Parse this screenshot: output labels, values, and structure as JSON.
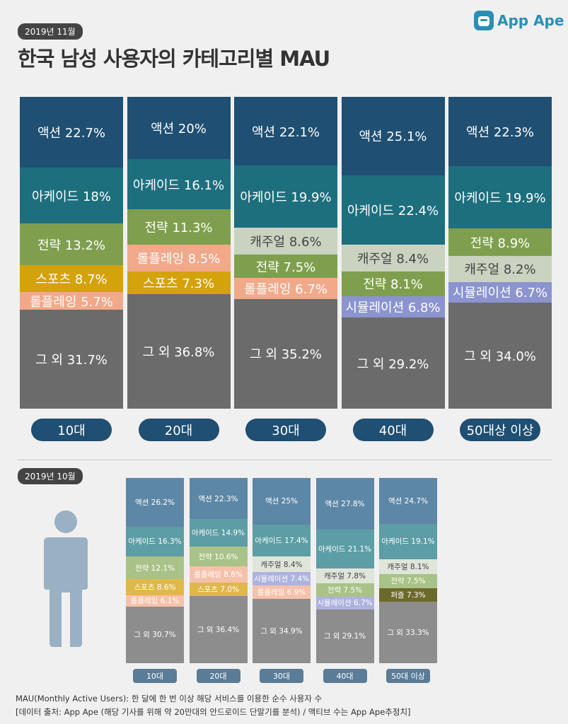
{
  "header": {
    "date_badge": "2019년 11월",
    "title": "한국 남성 사용자의 카테고리별 MAU",
    "logo_text": "App Ape"
  },
  "colors": {
    "액션": "#1f4f72",
    "아케이드": "#1d6f7e",
    "전략": "#7f9f4e",
    "캐주얼": "#c9d3c0",
    "스포츠": "#d4a20b",
    "롤플레잉": "#f2a98a",
    "시뮬레이션": "#8b94cf",
    "퍼즐": "#6b6a2a",
    "그 외": "#6b6b6b",
    "pill": "#1f4f72"
  },
  "colors_small": {
    "액션": "#5d87a6",
    "아케이드": "#5d9da5",
    "전략": "#a9c287",
    "캐주얼": "#dfe5d9",
    "스포츠": "#e0b84a",
    "롤플레잉": "#f6c1ab",
    "시뮬레이션": "#aeb3dd",
    "퍼즐": "#6b6a2a",
    "그 외": "#8d8d8d"
  },
  "chart_data": [
    {
      "type": "bar",
      "stacked": true,
      "title": "한국 남성 사용자의 카테고리별 MAU",
      "period": "2019년 11월",
      "unit": "%",
      "categories": [
        "10대",
        "20대",
        "30대",
        "40대",
        "50대상 이상"
      ],
      "columns": [
        {
          "group": "10대",
          "segments": [
            {
              "name": "액션",
              "value": 22.7,
              "label": "액션 22.7%"
            },
            {
              "name": "아케이드",
              "value": 18,
              "label": "아케이드 18%"
            },
            {
              "name": "전략",
              "value": 13.2,
              "label": "전략 13.2%"
            },
            {
              "name": "스포츠",
              "value": 8.7,
              "label": "스포츠 8.7%"
            },
            {
              "name": "롤플레잉",
              "value": 5.7,
              "label": "롤플레잉 5.7%"
            },
            {
              "name": "그 외",
              "value": 31.7,
              "label": "그 외 31.7%"
            }
          ]
        },
        {
          "group": "20대",
          "segments": [
            {
              "name": "액션",
              "value": 20,
              "label": "액션 20%"
            },
            {
              "name": "아케이드",
              "value": 16.1,
              "label": "아케이드 16.1%"
            },
            {
              "name": "전략",
              "value": 11.3,
              "label": "전략 11.3%"
            },
            {
              "name": "롤플레잉",
              "value": 8.5,
              "label": "롤플레잉 8.5%"
            },
            {
              "name": "스포츠",
              "value": 7.3,
              "label": "스포츠 7.3%"
            },
            {
              "name": "그 외",
              "value": 36.8,
              "label": "그 외 36.8%"
            }
          ]
        },
        {
          "group": "30대",
          "segments": [
            {
              "name": "액션",
              "value": 22.1,
              "label": "액션 22.1%"
            },
            {
              "name": "아케이드",
              "value": 19.9,
              "label": "아케이드 19.9%"
            },
            {
              "name": "캐주얼",
              "value": 8.6,
              "label": "캐주얼 8.6%"
            },
            {
              "name": "전략",
              "value": 7.5,
              "label": "전략 7.5%"
            },
            {
              "name": "롤플레잉",
              "value": 6.7,
              "label": "롤플레잉 6.7%"
            },
            {
              "name": "그 외",
              "value": 35.2,
              "label": "그 외 35.2%"
            }
          ]
        },
        {
          "group": "40대",
          "segments": [
            {
              "name": "액션",
              "value": 25.1,
              "label": "액션 25.1%"
            },
            {
              "name": "아케이드",
              "value": 22.4,
              "label": "아케이드 22.4%"
            },
            {
              "name": "캐주얼",
              "value": 8.4,
              "label": "캐주얼 8.4%"
            },
            {
              "name": "전략",
              "value": 8.1,
              "label": "전략 8.1%"
            },
            {
              "name": "시뮬레이션",
              "value": 6.8,
              "label": "시뮬레이션 6.8%"
            },
            {
              "name": "그 외",
              "value": 29.2,
              "label": "그 외 29.2%"
            }
          ]
        },
        {
          "group": "50대상 이상",
          "segments": [
            {
              "name": "액션",
              "value": 22.3,
              "label": "액션 22.3%"
            },
            {
              "name": "아케이드",
              "value": 19.9,
              "label": "아케이드 19.9%"
            },
            {
              "name": "전략",
              "value": 8.9,
              "label": "전략 8.9%"
            },
            {
              "name": "캐주얼",
              "value": 8.2,
              "label": "캐주얼 8.2%"
            },
            {
              "name": "시뮬레이션",
              "value": 6.7,
              "label": "시뮬레이션 6.7%"
            },
            {
              "name": "그 외",
              "value": 34.0,
              "label": "그 외 34.0%"
            }
          ]
        }
      ]
    },
    {
      "type": "bar",
      "stacked": true,
      "period": "2019년 10월",
      "unit": "%",
      "categories": [
        "10대",
        "20대",
        "30대",
        "40대",
        "50대 이상"
      ],
      "columns": [
        {
          "group": "10대",
          "segments": [
            {
              "name": "액션",
              "value": 26.2,
              "label": "액션 26.2%"
            },
            {
              "name": "아케이드",
              "value": 16.3,
              "label": "아케이드 16.3%"
            },
            {
              "name": "전략",
              "value": 12.1,
              "label": "전략 12.1%"
            },
            {
              "name": "스포츠",
              "value": 8.6,
              "label": "스포츠 8.6%"
            },
            {
              "name": "롤플레잉",
              "value": 6.1,
              "label": "롤플레잉 6.1%"
            },
            {
              "name": "그 외",
              "value": 30.7,
              "label": "그 외 30.7%"
            }
          ]
        },
        {
          "group": "20대",
          "segments": [
            {
              "name": "액션",
              "value": 22.3,
              "label": "액션 22.3%"
            },
            {
              "name": "아케이드",
              "value": 14.9,
              "label": "아케이드 14.9%"
            },
            {
              "name": "전략",
              "value": 10.6,
              "label": "전략 10.6%"
            },
            {
              "name": "롤플레잉",
              "value": 8.8,
              "label": "롤플레잉 8.8%"
            },
            {
              "name": "스포츠",
              "value": 7.0,
              "label": "스포츠 7.0%"
            },
            {
              "name": "그 외",
              "value": 36.4,
              "label": "그 외 36.4%"
            }
          ]
        },
        {
          "group": "30대",
          "segments": [
            {
              "name": "액션",
              "value": 25,
              "label": "액션 25%"
            },
            {
              "name": "아케이드",
              "value": 17.4,
              "label": "아케이드 17.4%"
            },
            {
              "name": "캐주얼",
              "value": 8.4,
              "label": "캐주얼 8.4%"
            },
            {
              "name": "시뮬레이션",
              "value": 7.4,
              "label": "시뮬레이션 7.4%"
            },
            {
              "name": "롤플레잉",
              "value": 6.9,
              "label": "롤플레잉 6.9%"
            },
            {
              "name": "그 외",
              "value": 34.9,
              "label": "그 외 34.9%"
            }
          ]
        },
        {
          "group": "40대",
          "segments": [
            {
              "name": "액션",
              "value": 27.8,
              "label": "액션 27.8%"
            },
            {
              "name": "아케이드",
              "value": 21.1,
              "label": "아케이드 21.1%"
            },
            {
              "name": "캐주얼",
              "value": 7.8,
              "label": "캐주얼 7.8%"
            },
            {
              "name": "전략",
              "value": 7.5,
              "label": "전략 7.5%"
            },
            {
              "name": "시뮬레이션",
              "value": 6.7,
              "label": "시뮬레이션 6.7%"
            },
            {
              "name": "그 외",
              "value": 29.1,
              "label": "그 외 29.1%"
            }
          ]
        },
        {
          "group": "50대 이상",
          "segments": [
            {
              "name": "액션",
              "value": 24.7,
              "label": "액션 24.7%"
            },
            {
              "name": "아케이드",
              "value": 19.1,
              "label": "아케이드 19.1%"
            },
            {
              "name": "캐주얼",
              "value": 8.1,
              "label": "캐주얼 8.1%"
            },
            {
              "name": "전략",
              "value": 7.5,
              "label": "전략 7.5%"
            },
            {
              "name": "퍼즐",
              "value": 7.3,
              "label": "퍼즐 7.3%"
            },
            {
              "name": "그 외",
              "value": 33.3,
              "label": "그 외 33.3%"
            }
          ]
        }
      ]
    }
  ],
  "section2": {
    "date_badge": "2019년 10월"
  },
  "footer": {
    "line1": "MAU(Monthly Active Users):  한 달에 한 번 이상 해당 서비스를 이용한 순수 사용자 수",
    "line2": "[데이터 출처: App Ape (해당 기사를 위해 약 20만대의 안드로이드 단말기를 분석) / 액티브 수는 App Ape추정치]"
  }
}
